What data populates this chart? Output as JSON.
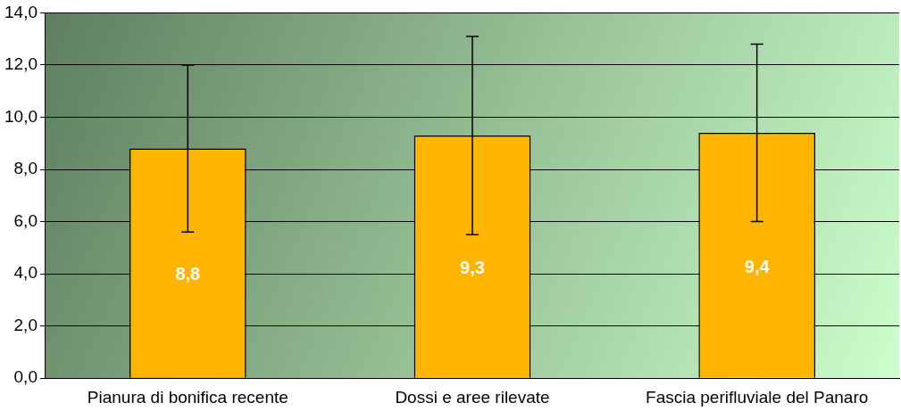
{
  "chart_data": {
    "type": "bar",
    "categories": [
      "Pianura di bonifica recente",
      "Dossi e aree rilevate",
      "Fascia perifluviale del Panaro"
    ],
    "values": [
      8.8,
      9.3,
      9.4
    ],
    "color": "#ffb400",
    "errors": [
      3.2,
      3.8,
      3.4
    ],
    "value_labels": [
      "8,8",
      "9,3",
      "9,4"
    ],
    "ylim": [
      0,
      14
    ],
    "yticks": [
      {
        "value": 0,
        "label": "0,0"
      },
      {
        "value": 2,
        "label": "2,0"
      },
      {
        "value": 4,
        "label": "4,0"
      },
      {
        "value": 6,
        "label": "6,0"
      },
      {
        "value": 8,
        "label": "8,0"
      },
      {
        "value": 10,
        "label": "10,0"
      },
      {
        "value": 12,
        "label": "12,0"
      },
      {
        "value": 14,
        "label": "14,0"
      }
    ],
    "grid": "y",
    "legend": false
  }
}
